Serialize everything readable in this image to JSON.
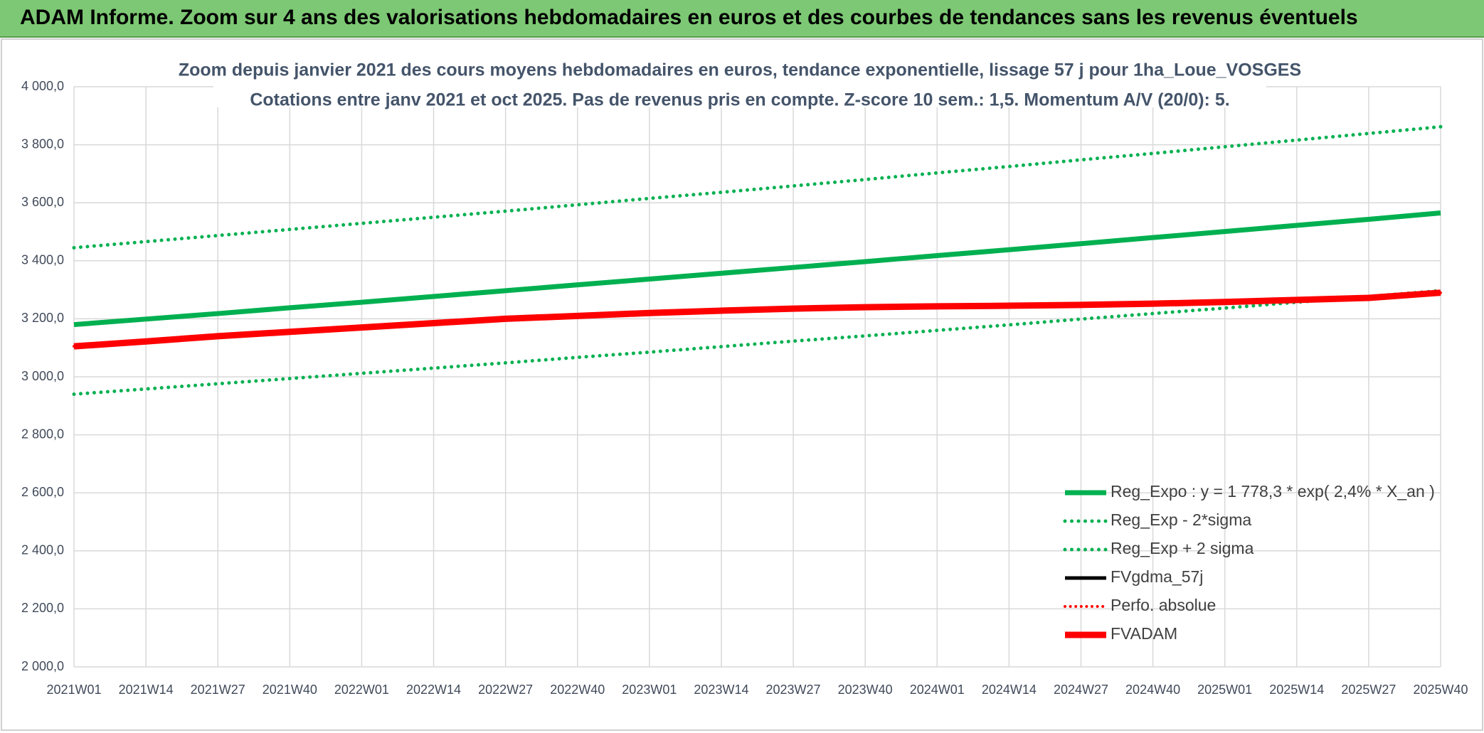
{
  "header": {
    "title": "ADAM Informe. Zoom sur 4 ans des valorisations hebdomadaires en euros et des courbes de tendances sans les revenus éventuels"
  },
  "chart_data": {
    "type": "line",
    "title": "Zoom depuis janvier 2021 des cours moyens hebdomadaires en euros, tendance exponentielle, lissage 57 j pour 1ha_Loue_VOSGES",
    "subtitle": "Cotations entre janv 2021 et oct 2025. Pas de revenus pris en compte. Z-score 10 sem.: 1,5. Momentum A/V (20/0): 5.",
    "categories": [
      "2021W01",
      "2021W14",
      "2021W27",
      "2021W40",
      "2022W01",
      "2022W14",
      "2022W27",
      "2022W40",
      "2023W01",
      "2023W14",
      "2023W27",
      "2023W40",
      "2024W01",
      "2024W14",
      "2024W27",
      "2024W40",
      "2025W01",
      "2025W14",
      "2025W27",
      "2025W40"
    ],
    "ylim": [
      2000,
      4000
    ],
    "yticks": [
      {
        "value": 2000,
        "label": "2 000,0"
      },
      {
        "value": 2200,
        "label": "2 200,0"
      },
      {
        "value": 2400,
        "label": "2 400,0"
      },
      {
        "value": 2600,
        "label": "2 600,0"
      },
      {
        "value": 2800,
        "label": "2 800,0"
      },
      {
        "value": 3000,
        "label": "3 000,0"
      },
      {
        "value": 3200,
        "label": "3 200,0"
      },
      {
        "value": 3400,
        "label": "3 400,0"
      },
      {
        "value": 3600,
        "label": "3 600,0"
      },
      {
        "value": 3800,
        "label": "3 800,0"
      },
      {
        "value": 4000,
        "label": "4 000,0"
      }
    ],
    "grid": true,
    "legend": "bottom-right",
    "series": [
      {
        "name": "Reg_Expo : y = 1 778,3 * exp( 2,4% *  X_an )",
        "color": "#00b050",
        "line_style": "solid",
        "line_width": 7,
        "values": [
          3180,
          3199,
          3218,
          3238,
          3257,
          3277,
          3297,
          3317,
          3337,
          3357,
          3377,
          3397,
          3418,
          3438,
          3459,
          3480,
          3501,
          3522,
          3543,
          3565
        ]
      },
      {
        "name": "Reg_Exp - 2*sigma",
        "color": "#00b050",
        "line_style": "dotted",
        "line_width": 5,
        "values": [
          2940,
          2958,
          2976,
          2994,
          3012,
          3030,
          3048,
          3067,
          3085,
          3104,
          3123,
          3141,
          3160,
          3179,
          3199,
          3218,
          3237,
          3257,
          3277,
          3297
        ]
      },
      {
        "name": "Reg_Exp + 2 sigma",
        "color": "#00b050",
        "line_style": "dotted",
        "line_width": 5,
        "values": [
          3445,
          3466,
          3487,
          3508,
          3529,
          3550,
          3571,
          3593,
          3615,
          3636,
          3658,
          3680,
          3703,
          3725,
          3748,
          3770,
          3793,
          3816,
          3839,
          3862
        ]
      },
      {
        "name": "FVgdma_57j",
        "color": "#000000",
        "line_style": "solid",
        "line_width": 5,
        "values": [
          3105,
          3122,
          3140,
          3155,
          3170,
          3185,
          3200,
          3210,
          3220,
          3228,
          3235,
          3240,
          3243,
          3245,
          3248,
          3252,
          3258,
          3265,
          3272,
          3290
        ]
      },
      {
        "name": "Perfo. absolue",
        "color": "#ff0000",
        "line_style": "dotted",
        "line_width": 4,
        "values": [
          3105,
          3122,
          3140,
          3155,
          3170,
          3185,
          3200,
          3210,
          3220,
          3228,
          3235,
          3240,
          3243,
          3245,
          3248,
          3252,
          3258,
          3265,
          3272,
          3290
        ]
      },
      {
        "name": "FVADAM",
        "color": "#ff0000",
        "line_style": "solid",
        "line_width": 9,
        "values": [
          3105,
          3122,
          3140,
          3155,
          3170,
          3185,
          3200,
          3210,
          3220,
          3228,
          3235,
          3240,
          3243,
          3245,
          3248,
          3252,
          3258,
          3265,
          3272,
          3290
        ]
      }
    ]
  }
}
